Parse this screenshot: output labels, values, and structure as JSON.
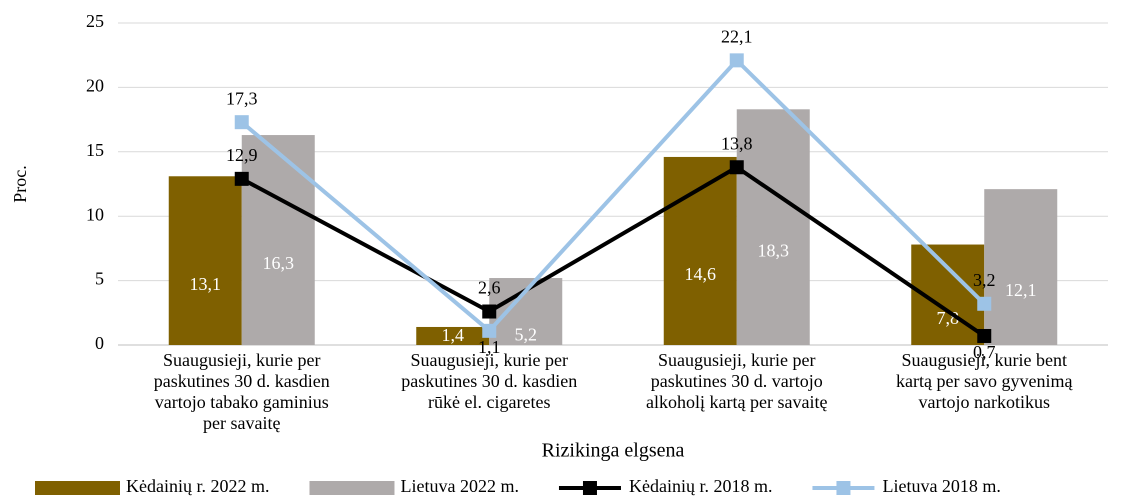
{
  "chart_data": {
    "type": "bar_line",
    "ylabel": "Proc.",
    "xlabel": "Rizikinga elgsena",
    "categories": [
      [
        "Suaugusieji, kurie per",
        "paskutines 30 d. kasdien",
        "vartojo tabako gaminius",
        "per savaitę"
      ],
      [
        "Suaugusieji, kurie per",
        "paskutines 30 d. kasdien",
        "rūkė el. cigaretes"
      ],
      [
        "Suaugusieji, kurie per",
        "paskutines 30 d. vartojo",
        "alkoholį kartą per savaitę"
      ],
      [
        "Suaugusieji, kurie bent",
        "kartą per savo gyvenimą",
        "vartojo narkotikus"
      ]
    ],
    "series": [
      {
        "name": "Kėdainių r. 2022 m.",
        "type": "bar",
        "color": "#7f6000",
        "values": [
          13.1,
          1.4,
          14.6,
          7.8
        ],
        "value_labels": [
          "13,1",
          "1,4",
          "14,6",
          "7,8"
        ]
      },
      {
        "name": "Lietuva 2022 m.",
        "type": "bar",
        "color": "#aeaaaa",
        "values": [
          16.3,
          5.2,
          18.3,
          12.1
        ],
        "value_labels": [
          "16,3",
          "5,2",
          "18,3",
          "12,1"
        ]
      },
      {
        "name": "Kėdainių r. 2018 m.",
        "type": "line",
        "color": "#000000",
        "values": [
          12.9,
          2.6,
          13.8,
          0.7
        ],
        "value_labels": [
          "12,9",
          "2,6",
          "13,8",
          "0,7"
        ]
      },
      {
        "name": "Lietuva 2018 m.",
        "type": "line",
        "color": "#9dc3e6",
        "values": [
          17.3,
          1.1,
          22.1,
          3.2
        ],
        "value_labels": [
          "17,3",
          "1,1",
          "22,1",
          "3,2"
        ]
      }
    ],
    "ylim": [
      0,
      25
    ],
    "yticks": [
      0,
      5,
      10,
      15,
      20,
      25
    ],
    "legend": "bottom"
  }
}
